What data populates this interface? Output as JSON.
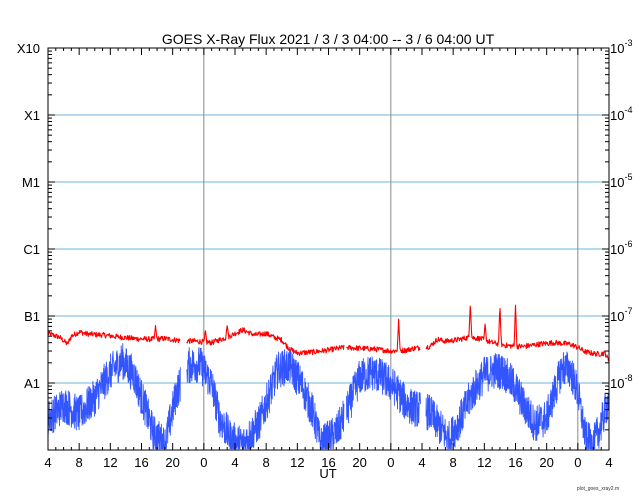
{
  "chart_data": {
    "type": "line",
    "title": "GOES X-Ray Flux   2021 /  3  /  3    04:00 --  3  /  6   04:00    UT",
    "xlabel": "UT",
    "ylabel": "",
    "scale_y": "log",
    "ylim": [
      1e-09,
      0.001
    ],
    "xlim_hours": [
      0,
      72
    ],
    "x_ticks": [
      "4",
      "8",
      "12",
      "16",
      "20",
      "0",
      "4",
      "8",
      "12",
      "16",
      "20",
      "0",
      "4",
      "8",
      "12",
      "16",
      "20",
      "0",
      "4"
    ],
    "day_boundaries_hours": [
      20,
      44,
      68
    ],
    "left_axis_labels": [
      {
        "label": "X10",
        "value": 0.001
      },
      {
        "label": "X1",
        "value": 0.0001
      },
      {
        "label": "M1",
        "value": 1e-05
      },
      {
        "label": "C1",
        "value": 1e-06
      },
      {
        "label": "B1",
        "value": 1e-07
      },
      {
        "label": "A1",
        "value": 1e-08
      }
    ],
    "right_axis_labels": [
      {
        "base": "10",
        "exp": "-3",
        "value": 0.001
      },
      {
        "base": "10",
        "exp": "-4",
        "value": 0.0001
      },
      {
        "base": "10",
        "exp": "-5",
        "value": 1e-05
      },
      {
        "base": "10",
        "exp": "-6",
        "value": 1e-06
      },
      {
        "base": "10",
        "exp": "-7",
        "value": 1e-07
      },
      {
        "base": "10",
        "exp": "-8",
        "value": 1e-08
      }
    ],
    "grid_levels": [
      0.0001,
      1e-05,
      1e-06,
      1e-07,
      1e-08
    ],
    "colors": {
      "long_channel": "#ff0000",
      "short_channel": "#3355ff",
      "grid": "#6fb7dd",
      "day_line": "#888888"
    },
    "series": [
      {
        "channel": "long",
        "color": "#ff0000",
        "points": [
          [
            0,
            5.5e-08
          ],
          [
            1.5,
            4.8e-08
          ],
          [
            2.5,
            3.8e-08
          ],
          [
            3.0,
            5e-08
          ],
          [
            4.0,
            5.8e-08
          ],
          [
            5.0,
            5.4e-08
          ],
          [
            7.0,
            5.2e-08
          ],
          [
            9.0,
            4.9e-08
          ],
          [
            11.0,
            4.6e-08
          ],
          [
            13.0,
            4.5e-08
          ],
          [
            15.0,
            4.6e-08
          ],
          [
            17.0,
            4.3e-08
          ],
          [
            19.0,
            4.2e-08
          ],
          [
            21.0,
            4e-08
          ],
          [
            22.0,
            4.4e-08
          ],
          [
            23.0,
            4.8e-08
          ],
          [
            24.0,
            5.5e-08
          ],
          [
            25.0,
            6.2e-08
          ],
          [
            26.5,
            5.2e-08
          ],
          [
            28.0,
            5.5e-08
          ],
          [
            29.0,
            4.8e-08
          ],
          [
            30.0,
            4.4e-08
          ],
          [
            31.0,
            3.2e-08
          ],
          [
            32.0,
            2.8e-08
          ],
          [
            34.0,
            2.9e-08
          ],
          [
            36.0,
            3.1e-08
          ],
          [
            38.0,
            3.4e-08
          ],
          [
            40.0,
            3.3e-08
          ],
          [
            42.0,
            3.2e-08
          ],
          [
            44.0,
            3e-08
          ],
          [
            46.0,
            3.1e-08
          ],
          [
            47.0,
            3.3e-08
          ],
          [
            49.0,
            3.5e-08
          ],
          [
            50.0,
            4.5e-08
          ],
          [
            51.0,
            4.2e-08
          ],
          [
            52.5,
            4.4e-08
          ],
          [
            54.0,
            4.8e-08
          ],
          [
            55.5,
            4.6e-08
          ],
          [
            57.0,
            4e-08
          ],
          [
            59.0,
            3.6e-08
          ],
          [
            61.0,
            3.5e-08
          ],
          [
            63.0,
            3.8e-08
          ],
          [
            65.0,
            4e-08
          ],
          [
            67.0,
            3.8e-08
          ],
          [
            68.0,
            3.4e-08
          ],
          [
            69.0,
            2.9e-08
          ],
          [
            70.5,
            2.7e-08
          ],
          [
            71.5,
            2.8e-08
          ],
          [
            72.0,
            2.1e-08
          ]
        ],
        "spikes": [
          [
            13.8,
            7.2e-08
          ],
          [
            20.2,
            6.3e-08
          ],
          [
            23.0,
            7.5e-08
          ],
          [
            45.0,
            9e-08
          ],
          [
            54.2,
            1.6e-07
          ],
          [
            56.1,
            7.6e-08
          ],
          [
            58.0,
            1.5e-07
          ],
          [
            60.0,
            1.45e-07
          ]
        ],
        "gaps": [
          [
            17.0,
            17.8
          ],
          [
            38.0,
            38.3
          ],
          [
            47.8,
            48.5
          ]
        ]
      },
      {
        "channel": "short",
        "color": "#3355ff",
        "points": [
          [
            0,
            2.5e-09
          ],
          [
            1.0,
            3e-09
          ],
          [
            2.0,
            4e-09
          ],
          [
            4.0,
            2.8e-09
          ],
          [
            6.0,
            5e-09
          ],
          [
            8.0,
            1.2e-08
          ],
          [
            9.5,
            1.8e-08
          ],
          [
            11.0,
            1.1e-08
          ],
          [
            12.5,
            3.5e-09
          ],
          [
            13.5,
            1.5e-09
          ],
          [
            15.0,
            1e-09
          ],
          [
            16.5,
            6e-09
          ],
          [
            18.0,
            1.5e-08
          ],
          [
            19.5,
            1.6e-08
          ],
          [
            21.0,
            8e-09
          ],
          [
            22.0,
            2.5e-09
          ],
          [
            23.5,
            1.2e-09
          ],
          [
            25.0,
            1e-09
          ],
          [
            27.0,
            2e-09
          ],
          [
            28.5,
            6e-09
          ],
          [
            29.5,
            1.3e-08
          ],
          [
            31.0,
            1.5e-08
          ],
          [
            32.5,
            8e-09
          ],
          [
            34.0,
            3e-09
          ],
          [
            35.0,
            1e-09
          ],
          [
            37.0,
            1.5e-09
          ],
          [
            38.5,
            3.5e-09
          ],
          [
            40.0,
            1e-08
          ],
          [
            41.5,
            1.2e-08
          ],
          [
            43.0,
            1e-08
          ],
          [
            44.5,
            7e-09
          ],
          [
            46.0,
            4e-09
          ],
          [
            47.0,
            3.5e-09
          ],
          [
            49.0,
            3e-09
          ],
          [
            50.0,
            2e-09
          ],
          [
            51.5,
            1.2e-09
          ],
          [
            53.0,
            2.5e-09
          ],
          [
            54.5,
            6e-09
          ],
          [
            56.0,
            1.1e-08
          ],
          [
            57.5,
            1.3e-08
          ],
          [
            58.5,
            1.2e-08
          ],
          [
            60.0,
            7e-09
          ],
          [
            61.0,
            4e-09
          ],
          [
            62.5,
            2e-09
          ],
          [
            64.0,
            2.5e-09
          ],
          [
            65.0,
            6e-09
          ],
          [
            66.0,
            1.4e-08
          ],
          [
            67.0,
            1.3e-08
          ],
          [
            68.0,
            6e-09
          ],
          [
            69.0,
            1.2e-09
          ],
          [
            70.0,
            1e-09
          ],
          [
            71.0,
            2e-09
          ],
          [
            72.0,
            5e-09
          ]
        ],
        "gaps": [
          [
            17.0,
            17.8
          ],
          [
            38.0,
            38.3
          ],
          [
            47.8,
            48.5
          ]
        ]
      }
    ]
  },
  "credit": "plot_goes_xray2.m"
}
